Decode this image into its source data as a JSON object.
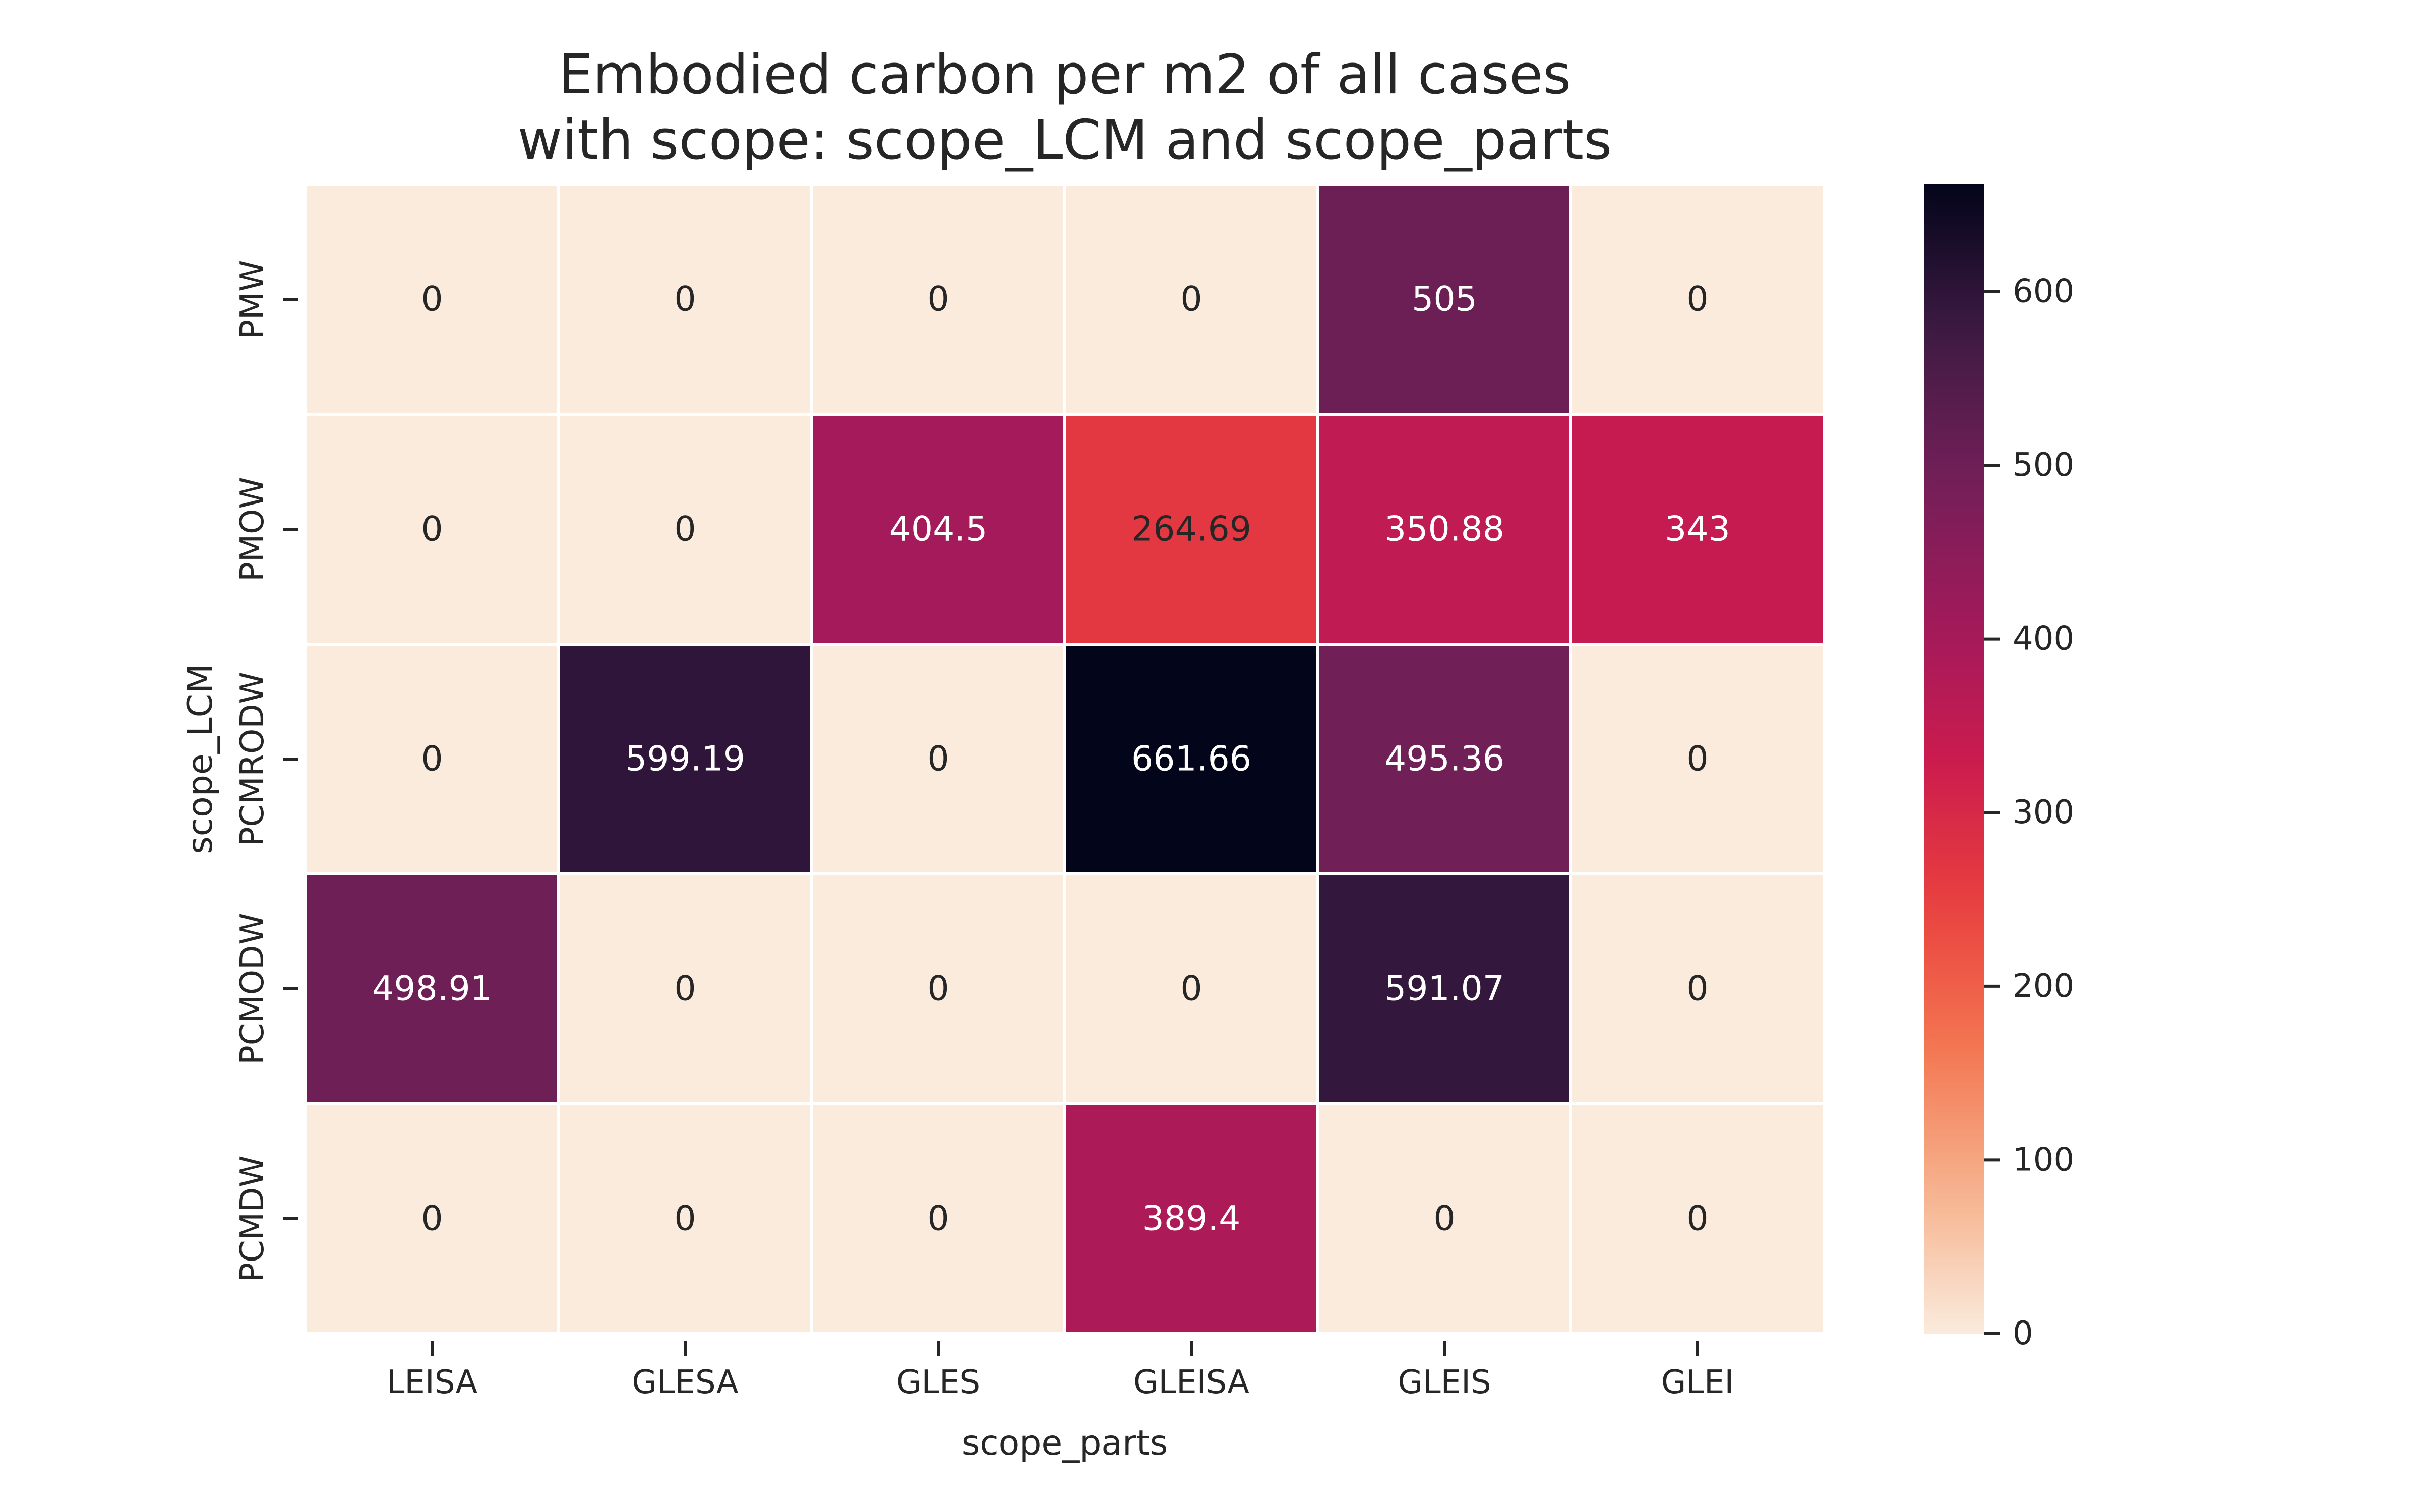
{
  "chart_data": {
    "type": "heatmap",
    "title_lines": [
      "Embodied carbon per m2 of all cases",
      "with scope: scope_LCM and scope_parts"
    ],
    "xlabel": "scope_parts",
    "ylabel": "scope_LCM",
    "x_categories": [
      "LEISA",
      "GLESA",
      "GLES",
      "GLEISA",
      "GLEIS",
      "GLEI"
    ],
    "y_categories": [
      "PMW",
      "PMOW",
      "PCMRODW",
      "PCMODW",
      "PCMDW"
    ],
    "values": [
      [
        0,
        0,
        0,
        0,
        505,
        0
      ],
      [
        0,
        0,
        404.5,
        264.69,
        350.88,
        343
      ],
      [
        0,
        599.19,
        0,
        661.66,
        495.36,
        0
      ],
      [
        498.91,
        0,
        0,
        0,
        591.07,
        0
      ],
      [
        0,
        0,
        0,
        389.4,
        0,
        0
      ]
    ],
    "value_labels": [
      [
        "0",
        "0",
        "0",
        "0",
        "505",
        "0"
      ],
      [
        "0",
        "0",
        "404.5",
        "264.69",
        "350.88",
        "343"
      ],
      [
        "0",
        "599.19",
        "0",
        "661.66",
        "495.36",
        "0"
      ],
      [
        "498.91",
        "0",
        "0",
        "0",
        "591.07",
        "0"
      ],
      [
        "0",
        "0",
        "0",
        "389.4",
        "0",
        "0"
      ]
    ],
    "colorbar": {
      "vmin": 0,
      "vmax": 661.66,
      "ticks": [
        0,
        100,
        200,
        300,
        400,
        500,
        600
      ],
      "tick_labels": [
        "0",
        "100",
        "200",
        "300",
        "400",
        "500",
        "600"
      ],
      "colormap": "rocket_r"
    },
    "grid_line_color": "#ffffff",
    "text_color_dark": "#262626",
    "text_color_light": "#ffffff"
  }
}
